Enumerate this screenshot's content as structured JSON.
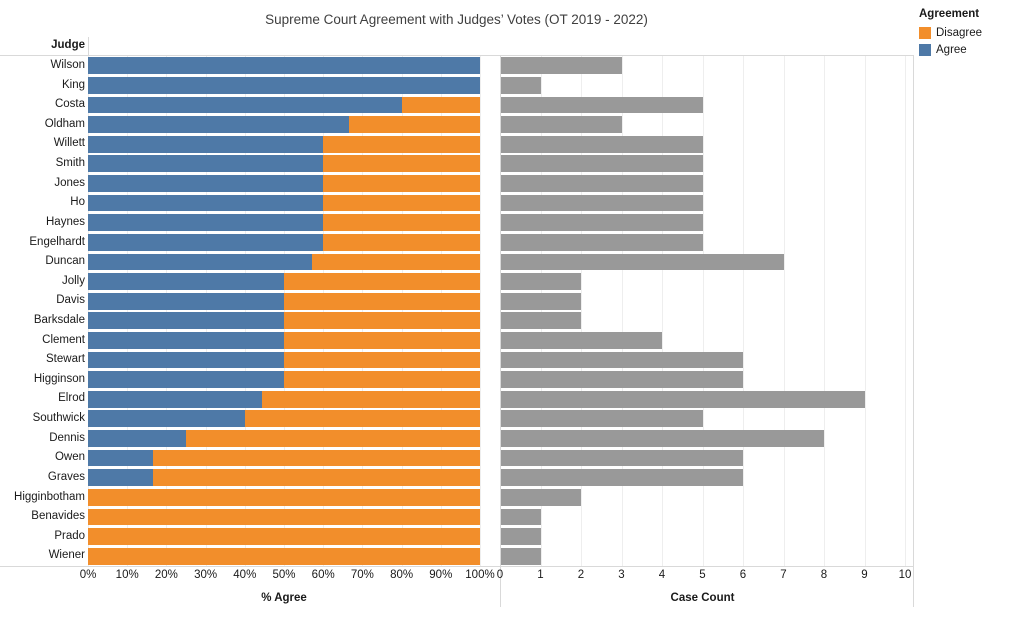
{
  "title": "Supreme Court Agreement with Judges’ Votes (OT 2019 - 2022)",
  "columns": {
    "judge_header": "Judge"
  },
  "legend": {
    "title": "Agreement",
    "items": [
      {
        "label": "Disagree",
        "color": "#f28e2b"
      },
      {
        "label": "Agree",
        "color": "#4e79a7"
      }
    ]
  },
  "axes": {
    "left": {
      "title": "% Agree",
      "ticks": [
        "0%",
        "10%",
        "20%",
        "30%",
        "40%",
        "50%",
        "60%",
        "70%",
        "80%",
        "90%",
        "100%"
      ],
      "range": [
        0,
        100
      ]
    },
    "right": {
      "title": "Case Count",
      "ticks": [
        "0",
        "1",
        "2",
        "3",
        "4",
        "5",
        "6",
        "7",
        "8",
        "9",
        "10"
      ],
      "range": [
        0,
        10
      ]
    }
  },
  "colors": {
    "agree": "#4e79a7",
    "disagree": "#f28e2b",
    "case_count": "#999999",
    "grid": "#eeeeee",
    "border": "#d9d9d9"
  },
  "chart_data": {
    "type": "bar",
    "orientation": "horizontal",
    "title": "Supreme Court Agreement with Judges’ Votes (OT 2019 - 2022)",
    "row_axis_label": "Judge",
    "legend": {
      "title": "Agreement",
      "entries": [
        "Disagree",
        "Agree"
      ],
      "position": "top-right"
    },
    "panels": [
      {
        "xlabel": "% Agree",
        "xlim": [
          0,
          100
        ],
        "ticks_pct": [
          0,
          10,
          20,
          30,
          40,
          50,
          60,
          70,
          80,
          90,
          100
        ],
        "grid": true,
        "series": [
          "Agree %",
          "Disagree %"
        ],
        "stacked": true
      },
      {
        "xlabel": "Case Count",
        "xlim": [
          0,
          10
        ],
        "ticks": [
          0,
          1,
          2,
          3,
          4,
          5,
          6,
          7,
          8,
          9,
          10
        ],
        "grid": true,
        "series": [
          "Case Count"
        ]
      }
    ],
    "judges": [
      {
        "name": "Wilson",
        "agree_pct": 100,
        "disagree_pct": 0,
        "case_count": 3
      },
      {
        "name": "King",
        "agree_pct": 100,
        "disagree_pct": 0,
        "case_count": 1
      },
      {
        "name": "Costa",
        "agree_pct": 80,
        "disagree_pct": 20,
        "case_count": 5
      },
      {
        "name": "Oldham",
        "agree_pct": 66.7,
        "disagree_pct": 33.3,
        "case_count": 3
      },
      {
        "name": "Willett",
        "agree_pct": 60,
        "disagree_pct": 40,
        "case_count": 5
      },
      {
        "name": "Smith",
        "agree_pct": 60,
        "disagree_pct": 40,
        "case_count": 5
      },
      {
        "name": "Jones",
        "agree_pct": 60,
        "disagree_pct": 40,
        "case_count": 5
      },
      {
        "name": "Ho",
        "agree_pct": 60,
        "disagree_pct": 40,
        "case_count": 5
      },
      {
        "name": "Haynes",
        "agree_pct": 60,
        "disagree_pct": 40,
        "case_count": 5
      },
      {
        "name": "Engelhardt",
        "agree_pct": 60,
        "disagree_pct": 40,
        "case_count": 5
      },
      {
        "name": "Duncan",
        "agree_pct": 57.1,
        "disagree_pct": 42.9,
        "case_count": 7
      },
      {
        "name": "Jolly",
        "agree_pct": 50,
        "disagree_pct": 50,
        "case_count": 2
      },
      {
        "name": "Davis",
        "agree_pct": 50,
        "disagree_pct": 50,
        "case_count": 2
      },
      {
        "name": "Barksdale",
        "agree_pct": 50,
        "disagree_pct": 50,
        "case_count": 2
      },
      {
        "name": "Clement",
        "agree_pct": 50,
        "disagree_pct": 50,
        "case_count": 4
      },
      {
        "name": "Stewart",
        "agree_pct": 50,
        "disagree_pct": 50,
        "case_count": 6
      },
      {
        "name": "Higginson",
        "agree_pct": 50,
        "disagree_pct": 50,
        "case_count": 6
      },
      {
        "name": "Elrod",
        "agree_pct": 44.4,
        "disagree_pct": 55.6,
        "case_count": 9
      },
      {
        "name": "Southwick",
        "agree_pct": 40,
        "disagree_pct": 60,
        "case_count": 5
      },
      {
        "name": "Dennis",
        "agree_pct": 25,
        "disagree_pct": 75,
        "case_count": 8
      },
      {
        "name": "Owen",
        "agree_pct": 16.7,
        "disagree_pct": 83.3,
        "case_count": 6
      },
      {
        "name": "Graves",
        "agree_pct": 16.7,
        "disagree_pct": 83.3,
        "case_count": 6
      },
      {
        "name": "Higginbotham",
        "agree_pct": 0,
        "disagree_pct": 100,
        "case_count": 2
      },
      {
        "name": "Benavides",
        "agree_pct": 0,
        "disagree_pct": 100,
        "case_count": 1
      },
      {
        "name": "Prado",
        "agree_pct": 0,
        "disagree_pct": 100,
        "case_count": 1
      },
      {
        "name": "Wiener",
        "agree_pct": 0,
        "disagree_pct": 100,
        "case_count": 1
      }
    ]
  }
}
